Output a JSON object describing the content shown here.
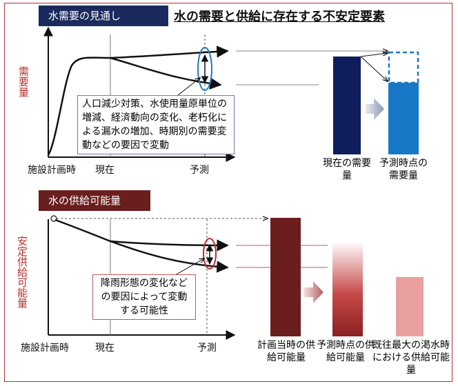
{
  "title": "水の需要と供給に存在する不安定要素",
  "demand": {
    "tag": "水需要の見通し",
    "y_label": "需要量",
    "x_ticks": [
      "施設計画時",
      "現在",
      "予測"
    ],
    "note": "人口減少対策、水使用量原単位の増減、経済動向の変化、老朽化による漏水の増加、時期別の需要変動などの要因で変動",
    "bar_labels": [
      "現在の需要量",
      "予測時点の需要量"
    ],
    "colors": {
      "current_bar": "#0f1d5c",
      "forecast_bar": "#1878c8",
      "tag": "#1b2a5c"
    }
  },
  "supply": {
    "tag": "水の供給可能量",
    "y_label": "安定供給可能量",
    "x_ticks": [
      "施設計画時",
      "現在",
      "予測"
    ],
    "note": "降雨形態の変化などの要因によって変動する可能性",
    "bar_labels": [
      "計画当時の供給可能量",
      "予測時点の供給可能量",
      "既往最大の渇水時における供給可能量"
    ],
    "colors": {
      "planned_bar": "#6b1e1e",
      "forecast_bar": "#8a2020",
      "drought_bar": "#eba0a0",
      "tag": "#6b1e1e"
    }
  }
}
